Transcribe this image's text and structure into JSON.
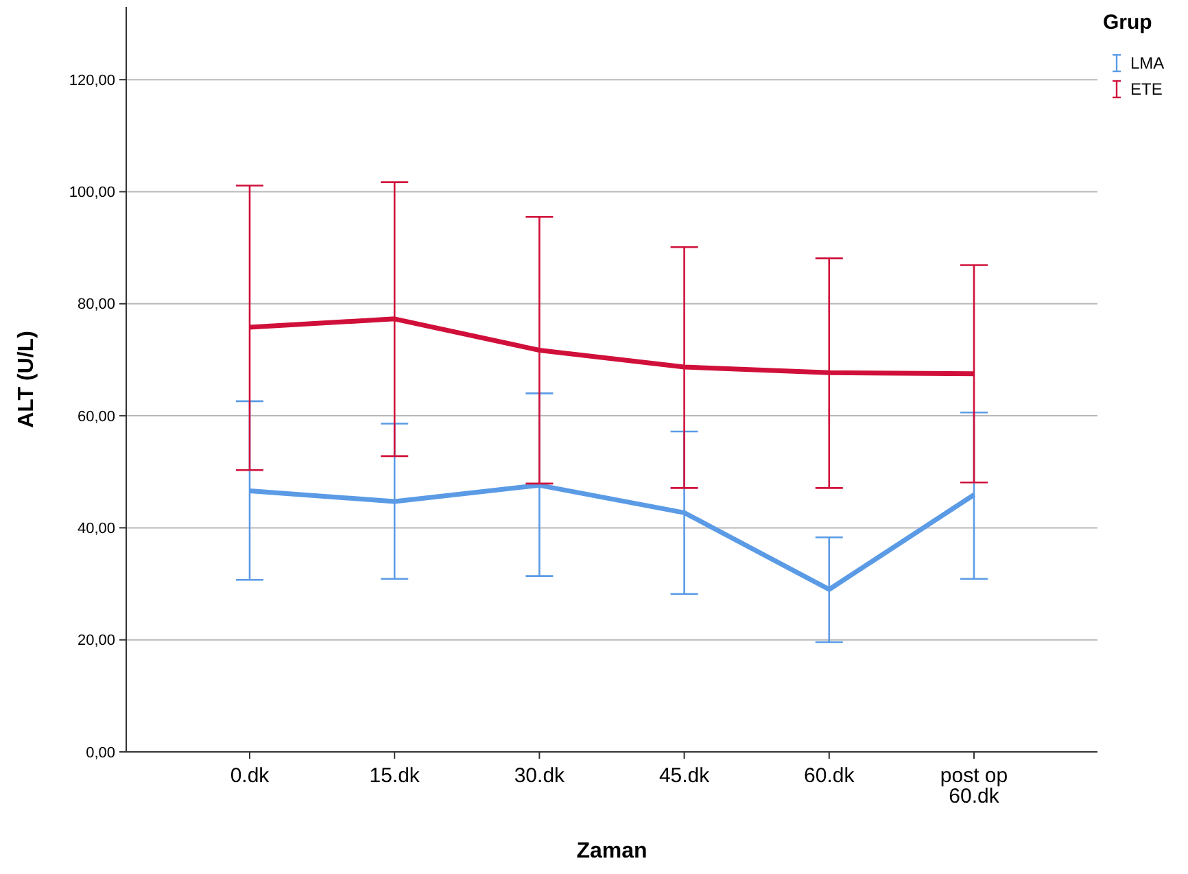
{
  "chart_data": {
    "type": "line",
    "xlabel": "Zaman",
    "ylabel": "ALT (U/L)",
    "legend_title": "Grup",
    "legend": "top right",
    "grid": "y",
    "categories": [
      "0.dk",
      "15.dk",
      "30.dk",
      "45.dk",
      "60.dk",
      "post op 60.dk"
    ],
    "ylim": [
      0,
      133
    ],
    "yticks": [
      {
        "value": 0,
        "label": "0,00"
      },
      {
        "value": 20,
        "label": "20,00"
      },
      {
        "value": 40,
        "label": "40,00"
      },
      {
        "value": 60,
        "label": "60,00"
      },
      {
        "value": 80,
        "label": "80,00"
      },
      {
        "value": 100,
        "label": "100,00"
      },
      {
        "value": 120,
        "label": "120,00"
      }
    ],
    "series": [
      {
        "name": "LMA",
        "color": "#5b9be6",
        "values": [
          46.6,
          44.7,
          47.6,
          42.7,
          29.0,
          45.9
        ],
        "errors": [
          [
            30.7,
            62.6
          ],
          [
            30.9,
            58.6
          ],
          [
            31.4,
            64.0
          ],
          [
            28.2,
            57.2
          ],
          [
            19.6,
            38.3
          ],
          [
            30.9,
            60.6
          ]
        ]
      },
      {
        "name": "ETE",
        "color": "#d0103a",
        "values": [
          75.8,
          77.3,
          71.7,
          68.7,
          67.7,
          67.5
        ],
        "errors": [
          [
            50.3,
            101.1
          ],
          [
            52.8,
            101.7
          ],
          [
            47.9,
            95.5
          ],
          [
            47.1,
            90.1
          ],
          [
            47.1,
            88.1
          ],
          [
            48.1,
            86.9
          ]
        ]
      }
    ]
  }
}
